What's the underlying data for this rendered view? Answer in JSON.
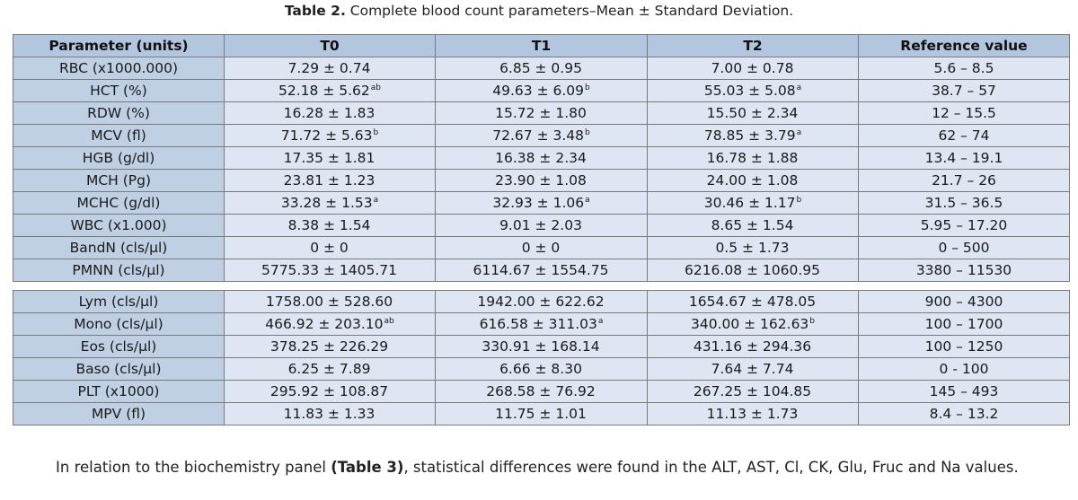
{
  "caption": {
    "label": "Table 2.",
    "text": " Complete blood count parameters–Mean ± Standard Deviation."
  },
  "table": {
    "headers": [
      "Parameter (units)",
      "T0",
      "T1",
      "T2",
      "Reference value"
    ],
    "group1": [
      {
        "param": "RBC (x1000.000)",
        "t0": "7.29 ± 0.74",
        "t0_sup": "",
        "t1": "6.85 ± 0.95",
        "t1_sup": "",
        "t2": "7.00 ± 0.78",
        "t2_sup": "",
        "ref": "5.6 – 8.5"
      },
      {
        "param": "HCT (%)",
        "t0": "52.18 ± 5.62",
        "t0_sup": "ab",
        "t1": "49.63 ± 6.09",
        "t1_sup": "b",
        "t2": "55.03 ± 5.08",
        "t2_sup": "a",
        "ref": "38.7 – 57"
      },
      {
        "param": "RDW (%)",
        "t0": "16.28 ± 1.83",
        "t0_sup": "",
        "t1": "15.72 ± 1.80",
        "t1_sup": "",
        "t2": "15.50 ± 2.34",
        "t2_sup": "",
        "ref": "12 – 15.5"
      },
      {
        "param": "MCV (fl)",
        "t0": "71.72 ± 5.63",
        "t0_sup": "b",
        "t1": "72.67 ± 3.48",
        "t1_sup": "b",
        "t2": "78.85 ± 3.79",
        "t2_sup": "a",
        "ref": "62 – 74"
      },
      {
        "param": "HGB (g/dl)",
        "t0": "17.35 ± 1.81",
        "t0_sup": "",
        "t1": "16.38 ± 2.34",
        "t1_sup": "",
        "t2": "16.78 ± 1.88",
        "t2_sup": "",
        "ref": "13.4 – 19.1"
      },
      {
        "param": "MCH (Pg)",
        "t0": "23.81 ± 1.23",
        "t0_sup": "",
        "t1": "23.90 ± 1.08",
        "t1_sup": "",
        "t2": "24.00 ± 1.08",
        "t2_sup": "",
        "ref": "21.7 – 26"
      },
      {
        "param": "MCHC (g/dl)",
        "t0": "33.28 ± 1.53",
        "t0_sup": "a",
        "t1": "32.93 ± 1.06",
        "t1_sup": "a",
        "t2": "30.46 ± 1.17",
        "t2_sup": "b",
        "ref": "31.5 – 36.5"
      },
      {
        "param": "WBC (x1.000)",
        "t0": "8.38 ± 1.54",
        "t0_sup": "",
        "t1": "9.01 ± 2.03",
        "t1_sup": "",
        "t2": "8.65 ± 1.54",
        "t2_sup": "",
        "ref": "5.95 – 17.20"
      },
      {
        "param": "BandN (cls/µl)",
        "t0": "0 ± 0",
        "t0_sup": "",
        "t1": "0 ± 0",
        "t1_sup": "",
        "t2": "0.5 ± 1.73",
        "t2_sup": "",
        "ref": "0 – 500"
      },
      {
        "param": "PMNN (cls/µl)",
        "t0": "5775.33 ± 1405.71",
        "t0_sup": "",
        "t1": "6114.67 ± 1554.75",
        "t1_sup": "",
        "t2": "6216.08 ± 1060.95",
        "t2_sup": "",
        "ref": "3380 – 11530"
      }
    ],
    "group2": [
      {
        "param": "Lym (cls/µl)",
        "t0": "1758.00 ± 528.60",
        "t0_sup": "",
        "t1": "1942.00 ± 622.62",
        "t1_sup": "",
        "t2": "1654.67 ± 478.05",
        "t2_sup": "",
        "ref": "900 – 4300"
      },
      {
        "param": "Mono (cls/µl)",
        "t0": "466.92 ± 203.10",
        "t0_sup": "ab",
        "t1": "616.58 ± 311.03",
        "t1_sup": "a",
        "t2": "340.00 ± 162.63",
        "t2_sup": "b",
        "ref": "100 – 1700"
      },
      {
        "param": "Eos (cls/µl)",
        "t0": "378.25 ± 226.29",
        "t0_sup": "",
        "t1": "330.91 ± 168.14",
        "t1_sup": "",
        "t2": "431.16 ± 294.36",
        "t2_sup": "",
        "ref": "100 – 1250"
      },
      {
        "param": "Baso (cls/µl)",
        "t0": "6.25 ± 7.89",
        "t0_sup": "",
        "t1": "6.66 ± 8.30",
        "t1_sup": "",
        "t2": "7.64 ± 7.74",
        "t2_sup": "",
        "ref": "0 - 100"
      },
      {
        "param": "PLT (x1000)",
        "t0": "295.92 ± 108.87",
        "t0_sup": "",
        "t1": "268.58 ± 76.92",
        "t1_sup": "",
        "t2": "267.25 ± 104.85",
        "t2_sup": "",
        "ref": "145 – 493"
      },
      {
        "param": "MPV (fl)",
        "t0": "11.83 ± 1.33",
        "t0_sup": "",
        "t1": "11.75 ± 1.01",
        "t1_sup": "",
        "t2": "11.13 ± 1.73",
        "t2_sup": "",
        "ref": "8.4 – 13.2"
      }
    ]
  },
  "paragraph": {
    "lead": "In relation to the biochemistry panel ",
    "ref": "(Table 3)",
    "rest": ", statistical differences were found in the ALT, AST, Cl, CK, Glu, Fruc and Na values."
  },
  "colors": {
    "header_bg": "#b3c6df",
    "param_bg": "#bfcfe4",
    "value_bg": "#dde6f2",
    "border": "#7a7a7a"
  }
}
